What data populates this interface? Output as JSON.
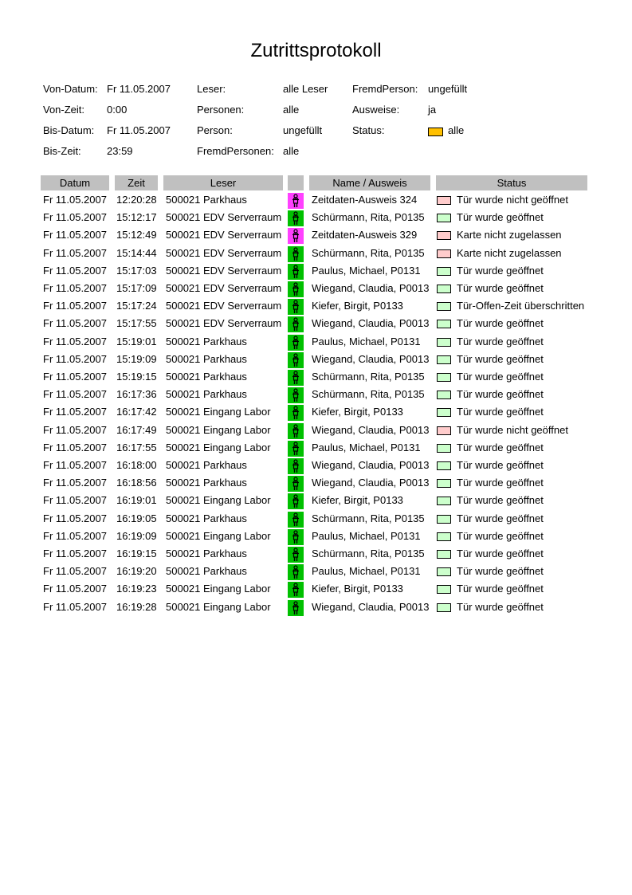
{
  "title": "Zutrittsprotokoll",
  "filters": [
    {
      "label": "Von-Datum:",
      "value": "Fr 11.05.2007"
    },
    {
      "label": "Von-Zeit:",
      "value": "0:00"
    },
    {
      "label": "Bis-Datum:",
      "value": "Fr 11.05.2007"
    },
    {
      "label": "Bis-Zeit:",
      "value": "23:59"
    },
    {
      "label": "Leser:",
      "value": "alle Leser"
    },
    {
      "label": "Personen:",
      "value": "alle"
    },
    {
      "label": "Person:",
      "value": "ungefüllt"
    },
    {
      "label": "FremdPersonen:",
      "value": "alle"
    },
    {
      "label": "FremdPerson:",
      "value": "ungefüllt"
    },
    {
      "label": "Ausweise:",
      "value": "ja"
    },
    {
      "label": "Status:",
      "value": "alle",
      "swatch": "#ffc000"
    }
  ],
  "colors": {
    "person_known": "#00c000",
    "person_unknown": "#ff40ff",
    "status_ok": "#ccffcc",
    "status_fail": "#ffcccc",
    "header_bg": "#c0c0c0"
  },
  "table": {
    "headers": [
      "Datum",
      "Zeit",
      "Leser",
      "",
      "Name / Ausweis",
      "Status"
    ],
    "rows": [
      [
        "Fr 11.05.2007",
        "12:20:28",
        "500021 Parkhaus",
        "unknown",
        "Zeitdaten-Ausweis 324",
        "Tür wurde nicht geöffnet",
        "fail"
      ],
      [
        "Fr 11.05.2007",
        "15:12:17",
        "500021 EDV Serverraum",
        "known",
        "Schürmann, Rita, P0135",
        "Tür wurde geöffnet",
        "ok"
      ],
      [
        "Fr 11.05.2007",
        "15:12:49",
        "500021 EDV Serverraum",
        "unknown",
        "Zeitdaten-Ausweis 329",
        "Karte nicht zugelassen",
        "fail"
      ],
      [
        "Fr 11.05.2007",
        "15:14:44",
        "500021 EDV Serverraum",
        "known",
        "Schürmann, Rita, P0135",
        "Karte nicht zugelassen",
        "fail"
      ],
      [
        "Fr 11.05.2007",
        "15:17:03",
        "500021 EDV Serverraum",
        "known",
        "Paulus, Michael, P0131",
        "Tür wurde geöffnet",
        "ok"
      ],
      [
        "Fr 11.05.2007",
        "15:17:09",
        "500021 EDV Serverraum",
        "known",
        "Wiegand, Claudia, P0013",
        "Tür wurde geöffnet",
        "ok"
      ],
      [
        "Fr 11.05.2007",
        "15:17:24",
        "500021 EDV Serverraum",
        "known",
        "Kiefer, Birgit, P0133",
        "Tür-Offen-Zeit überschritten",
        "ok"
      ],
      [
        "Fr 11.05.2007",
        "15:17:55",
        "500021 EDV Serverraum",
        "known",
        "Wiegand, Claudia, P0013",
        "Tür wurde geöffnet",
        "ok"
      ],
      [
        "Fr 11.05.2007",
        "15:19:01",
        "500021 Parkhaus",
        "known",
        "Paulus, Michael, P0131",
        "Tür wurde geöffnet",
        "ok"
      ],
      [
        "Fr 11.05.2007",
        "15:19:09",
        "500021 Parkhaus",
        "known",
        "Wiegand, Claudia, P0013",
        "Tür wurde geöffnet",
        "ok"
      ],
      [
        "Fr 11.05.2007",
        "15:19:15",
        "500021 Parkhaus",
        "known",
        "Schürmann, Rita, P0135",
        "Tür wurde geöffnet",
        "ok"
      ],
      [
        "Fr 11.05.2007",
        "16:17:36",
        "500021 Parkhaus",
        "known",
        "Schürmann, Rita, P0135",
        "Tür wurde geöffnet",
        "ok"
      ],
      [
        "Fr 11.05.2007",
        "16:17:42",
        "500021 Eingang Labor",
        "known",
        "Kiefer, Birgit, P0133",
        "Tür wurde geöffnet",
        "ok"
      ],
      [
        "Fr 11.05.2007",
        "16:17:49",
        "500021 Eingang Labor",
        "known",
        "Wiegand, Claudia, P0013",
        "Tür wurde nicht geöffnet",
        "fail"
      ],
      [
        "Fr 11.05.2007",
        "16:17:55",
        "500021 Eingang Labor",
        "known",
        "Paulus, Michael, P0131",
        "Tür wurde geöffnet",
        "ok"
      ],
      [
        "Fr 11.05.2007",
        "16:18:00",
        "500021 Parkhaus",
        "known",
        "Wiegand, Claudia, P0013",
        "Tür wurde geöffnet",
        "ok"
      ],
      [
        "Fr 11.05.2007",
        "16:18:56",
        "500021 Parkhaus",
        "known",
        "Wiegand, Claudia, P0013",
        "Tür wurde geöffnet",
        "ok"
      ],
      [
        "Fr 11.05.2007",
        "16:19:01",
        "500021 Eingang Labor",
        "known",
        "Kiefer, Birgit, P0133",
        "Tür wurde geöffnet",
        "ok"
      ],
      [
        "Fr 11.05.2007",
        "16:19:05",
        "500021 Parkhaus",
        "known",
        "Schürmann, Rita, P0135",
        "Tür wurde geöffnet",
        "ok"
      ],
      [
        "Fr 11.05.2007",
        "16:19:09",
        "500021 Eingang Labor",
        "known",
        "Paulus, Michael, P0131",
        "Tür wurde geöffnet",
        "ok"
      ],
      [
        "Fr 11.05.2007",
        "16:19:15",
        "500021 Parkhaus",
        "known",
        "Schürmann, Rita, P0135",
        "Tür wurde geöffnet",
        "ok"
      ],
      [
        "Fr 11.05.2007",
        "16:19:20",
        "500021 Parkhaus",
        "known",
        "Paulus, Michael, P0131",
        "Tür wurde geöffnet",
        "ok"
      ],
      [
        "Fr 11.05.2007",
        "16:19:23",
        "500021 Eingang Labor",
        "known",
        "Kiefer, Birgit, P0133",
        "Tür wurde geöffnet",
        "ok"
      ],
      [
        "Fr 11.05.2007",
        "16:19:28",
        "500021 Eingang Labor",
        "known",
        "Wiegand, Claudia, P0013",
        "Tür wurde geöffnet",
        "ok"
      ]
    ]
  }
}
